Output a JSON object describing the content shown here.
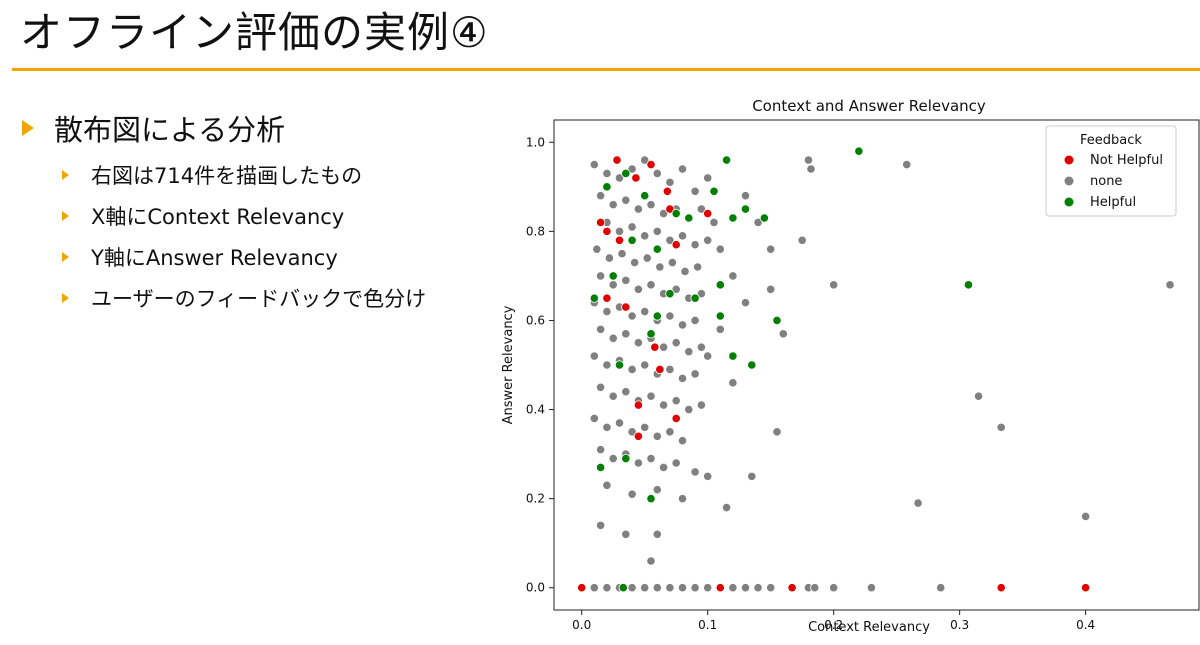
{
  "slide": {
    "title": "オフライン評価の実例④",
    "bullet_main": "散布図による分析",
    "sub_bullets": [
      "右図は714件を描画したもの",
      "X軸にContext Relevancy",
      "Y軸にAnswer Relevancy",
      "ユーザーのフィードバックで色分け"
    ]
  },
  "colors": {
    "accent": "#f0a500",
    "not_helpful": "#e00000",
    "none": "#808080",
    "helpful": "#008000"
  },
  "chart_data": {
    "type": "scatter",
    "title": "Context and Answer Relevancy",
    "xlabel": "Context Relevancy",
    "ylabel": "Answer Relevancy",
    "xlim": [
      -0.022,
      0.49
    ],
    "ylim": [
      -0.05,
      1.05
    ],
    "xticks": [
      "0.0",
      "0.1",
      "0.2",
      "0.3",
      "0.4"
    ],
    "yticks": [
      "0.0",
      "0.2",
      "0.4",
      "0.6",
      "0.8",
      "1.0"
    ],
    "grid": false,
    "legend": {
      "title": "Feedback",
      "placement": "top-right"
    },
    "series": [
      {
        "name": "none",
        "color": "#808080",
        "points": [
          [
            0.01,
            0.95
          ],
          [
            0.02,
            0.93
          ],
          [
            0.03,
            0.92
          ],
          [
            0.04,
            0.94
          ],
          [
            0.05,
            0.96
          ],
          [
            0.06,
            0.93
          ],
          [
            0.07,
            0.91
          ],
          [
            0.08,
            0.94
          ],
          [
            0.09,
            0.89
          ],
          [
            0.1,
            0.92
          ],
          [
            0.015,
            0.88
          ],
          [
            0.025,
            0.86
          ],
          [
            0.035,
            0.87
          ],
          [
            0.045,
            0.85
          ],
          [
            0.055,
            0.86
          ],
          [
            0.065,
            0.84
          ],
          [
            0.075,
            0.85
          ],
          [
            0.085,
            0.83
          ],
          [
            0.095,
            0.85
          ],
          [
            0.105,
            0.82
          ],
          [
            0.02,
            0.82
          ],
          [
            0.03,
            0.8
          ],
          [
            0.04,
            0.81
          ],
          [
            0.05,
            0.79
          ],
          [
            0.06,
            0.8
          ],
          [
            0.07,
            0.78
          ],
          [
            0.08,
            0.79
          ],
          [
            0.09,
            0.77
          ],
          [
            0.1,
            0.78
          ],
          [
            0.11,
            0.76
          ],
          [
            0.012,
            0.76
          ],
          [
            0.022,
            0.74
          ],
          [
            0.032,
            0.75
          ],
          [
            0.042,
            0.73
          ],
          [
            0.052,
            0.74
          ],
          [
            0.062,
            0.72
          ],
          [
            0.072,
            0.73
          ],
          [
            0.082,
            0.71
          ],
          [
            0.092,
            0.72
          ],
          [
            0.12,
            0.7
          ],
          [
            0.015,
            0.7
          ],
          [
            0.025,
            0.68
          ],
          [
            0.035,
            0.69
          ],
          [
            0.045,
            0.67
          ],
          [
            0.055,
            0.68
          ],
          [
            0.065,
            0.66
          ],
          [
            0.075,
            0.67
          ],
          [
            0.085,
            0.65
          ],
          [
            0.095,
            0.66
          ],
          [
            0.13,
            0.64
          ],
          [
            0.01,
            0.64
          ],
          [
            0.02,
            0.62
          ],
          [
            0.03,
            0.63
          ],
          [
            0.04,
            0.61
          ],
          [
            0.05,
            0.62
          ],
          [
            0.06,
            0.6
          ],
          [
            0.07,
            0.61
          ],
          [
            0.08,
            0.59
          ],
          [
            0.09,
            0.6
          ],
          [
            0.11,
            0.58
          ],
          [
            0.015,
            0.58
          ],
          [
            0.025,
            0.56
          ],
          [
            0.035,
            0.57
          ],
          [
            0.045,
            0.55
          ],
          [
            0.055,
            0.56
          ],
          [
            0.065,
            0.54
          ],
          [
            0.075,
            0.55
          ],
          [
            0.085,
            0.53
          ],
          [
            0.095,
            0.54
          ],
          [
            0.1,
            0.52
          ],
          [
            0.01,
            0.52
          ],
          [
            0.02,
            0.5
          ],
          [
            0.03,
            0.51
          ],
          [
            0.04,
            0.49
          ],
          [
            0.05,
            0.5
          ],
          [
            0.06,
            0.48
          ],
          [
            0.07,
            0.49
          ],
          [
            0.08,
            0.47
          ],
          [
            0.09,
            0.48
          ],
          [
            0.12,
            0.46
          ],
          [
            0.015,
            0.45
          ],
          [
            0.025,
            0.43
          ],
          [
            0.035,
            0.44
          ],
          [
            0.045,
            0.42
          ],
          [
            0.055,
            0.43
          ],
          [
            0.065,
            0.41
          ],
          [
            0.075,
            0.42
          ],
          [
            0.085,
            0.4
          ],
          [
            0.095,
            0.41
          ],
          [
            0.01,
            0.38
          ],
          [
            0.02,
            0.36
          ],
          [
            0.03,
            0.37
          ],
          [
            0.04,
            0.35
          ],
          [
            0.05,
            0.36
          ],
          [
            0.06,
            0.34
          ],
          [
            0.07,
            0.35
          ],
          [
            0.08,
            0.33
          ],
          [
            0.015,
            0.31
          ],
          [
            0.025,
            0.29
          ],
          [
            0.035,
            0.3
          ],
          [
            0.045,
            0.28
          ],
          [
            0.055,
            0.29
          ],
          [
            0.065,
            0.27
          ],
          [
            0.075,
            0.28
          ],
          [
            0.09,
            0.26
          ],
          [
            0.1,
            0.25
          ],
          [
            0.02,
            0.23
          ],
          [
            0.04,
            0.21
          ],
          [
            0.06,
            0.22
          ],
          [
            0.08,
            0.2
          ],
          [
            0.115,
            0.18
          ],
          [
            0.135,
            0.25
          ],
          [
            0.155,
            0.35
          ],
          [
            0.015,
            0.14
          ],
          [
            0.035,
            0.12
          ],
          [
            0.06,
            0.12
          ],
          [
            0.055,
            0.06
          ],
          [
            0.13,
            0.88
          ],
          [
            0.14,
            0.82
          ],
          [
            0.15,
            0.76
          ],
          [
            0.16,
            0.57
          ],
          [
            0.15,
            0.67
          ],
          [
            0.175,
            0.78
          ],
          [
            0.18,
            0.96
          ],
          [
            0.182,
            0.94
          ],
          [
            0.2,
            0.68
          ],
          [
            0.258,
            0.95
          ],
          [
            0.467,
            0.68
          ],
          [
            0.315,
            0.43
          ],
          [
            0.333,
            0.36
          ],
          [
            0.267,
            0.19
          ],
          [
            0.4,
            0.16
          ],
          [
            0.01,
            0.0
          ],
          [
            0.02,
            0.0
          ],
          [
            0.03,
            0.0
          ],
          [
            0.04,
            0.0
          ],
          [
            0.05,
            0.0
          ],
          [
            0.06,
            0.0
          ],
          [
            0.07,
            0.0
          ],
          [
            0.08,
            0.0
          ],
          [
            0.09,
            0.0
          ],
          [
            0.1,
            0.0
          ],
          [
            0.12,
            0.0
          ],
          [
            0.13,
            0.0
          ],
          [
            0.14,
            0.0
          ],
          [
            0.15,
            0.0
          ],
          [
            0.18,
            0.0
          ],
          [
            0.185,
            0.0
          ],
          [
            0.2,
            0.0
          ],
          [
            0.23,
            0.0
          ],
          [
            0.285,
            0.0
          ]
        ]
      },
      {
        "name": "Not Helpful",
        "color": "#e00000",
        "points": [
          [
            0.028,
            0.96
          ],
          [
            0.055,
            0.95
          ],
          [
            0.043,
            0.92
          ],
          [
            0.068,
            0.89
          ],
          [
            0.07,
            0.85
          ],
          [
            0.1,
            0.84
          ],
          [
            0.015,
            0.82
          ],
          [
            0.02,
            0.8
          ],
          [
            0.03,
            0.78
          ],
          [
            0.075,
            0.77
          ],
          [
            0.02,
            0.65
          ],
          [
            0.035,
            0.63
          ],
          [
            0.058,
            0.54
          ],
          [
            0.062,
            0.49
          ],
          [
            0.045,
            0.41
          ],
          [
            0.075,
            0.38
          ],
          [
            0.045,
            0.34
          ],
          [
            0.0,
            0.0
          ],
          [
            0.11,
            0.0
          ],
          [
            0.167,
            0.0
          ],
          [
            0.333,
            0.0
          ],
          [
            0.4,
            0.0
          ]
        ]
      },
      {
        "name": "Helpful",
        "color": "#008000",
        "points": [
          [
            0.22,
            0.98
          ],
          [
            0.115,
            0.96
          ],
          [
            0.035,
            0.93
          ],
          [
            0.02,
            0.9
          ],
          [
            0.05,
            0.88
          ],
          [
            0.105,
            0.89
          ],
          [
            0.13,
            0.85
          ],
          [
            0.075,
            0.84
          ],
          [
            0.085,
            0.83
          ],
          [
            0.12,
            0.83
          ],
          [
            0.145,
            0.83
          ],
          [
            0.04,
            0.78
          ],
          [
            0.06,
            0.76
          ],
          [
            0.025,
            0.7
          ],
          [
            0.07,
            0.66
          ],
          [
            0.11,
            0.68
          ],
          [
            0.307,
            0.68
          ],
          [
            0.09,
            0.65
          ],
          [
            0.01,
            0.65
          ],
          [
            0.06,
            0.61
          ],
          [
            0.11,
            0.61
          ],
          [
            0.155,
            0.6
          ],
          [
            0.055,
            0.57
          ],
          [
            0.12,
            0.52
          ],
          [
            0.135,
            0.5
          ],
          [
            0.03,
            0.5
          ],
          [
            0.015,
            0.27
          ],
          [
            0.035,
            0.29
          ],
          [
            0.055,
            0.2
          ],
          [
            0.033,
            0.0
          ]
        ]
      }
    ]
  }
}
